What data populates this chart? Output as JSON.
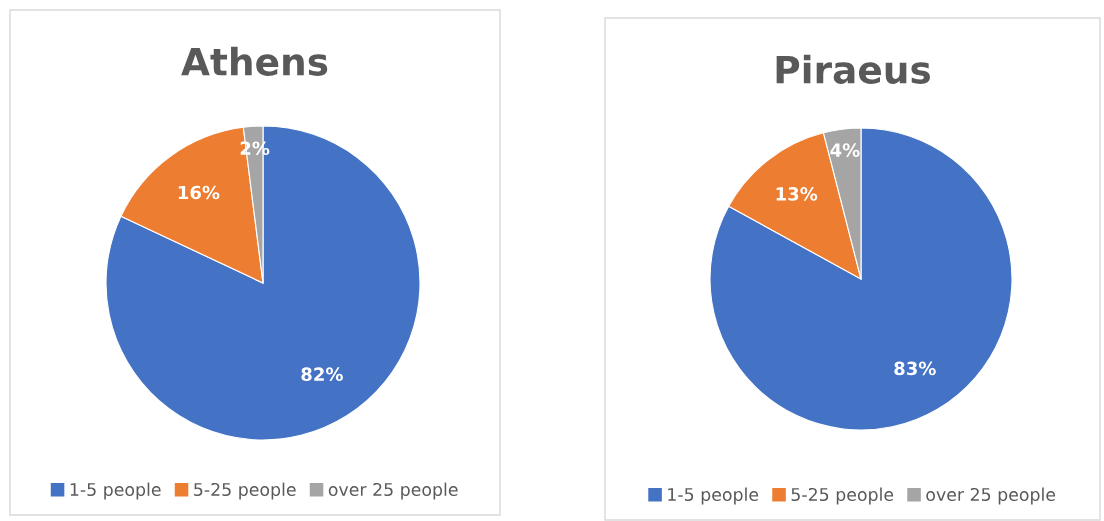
{
  "chart_data": [
    {
      "type": "pie",
      "title": "Athens",
      "categories": [
        "1-5 people",
        "5-25 people",
        "over 25 people"
      ],
      "values": [
        82,
        16,
        2
      ],
      "colors": [
        "#4472c4",
        "#ed7d31",
        "#a5a5a5"
      ],
      "value_labels": [
        "82%",
        "16%",
        "2%"
      ],
      "legend": "bottom"
    },
    {
      "type": "pie",
      "title": "Piraeus",
      "categories": [
        "1-5 people",
        "5-25 people",
        "over 25 people"
      ],
      "values": [
        83,
        13,
        4
      ],
      "colors": [
        "#4472c4",
        "#ed7d31",
        "#a5a5a5"
      ],
      "value_labels": [
        "83%",
        "13%",
        "4%"
      ],
      "legend": "bottom"
    }
  ]
}
